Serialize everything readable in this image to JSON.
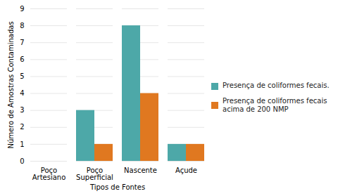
{
  "chart_data": {
    "type": "bar",
    "categories": [
      "Poço\nArtesiano",
      "Poço\nSuperficial",
      "Nascente",
      "Açude"
    ],
    "series": [
      {
        "name": "Presença de coliformes fecais.",
        "color": "#4da8a8",
        "values": [
          0,
          3,
          8,
          1
        ]
      },
      {
        "name": "Presença de coliformes fecais\nacima de 200 NMP",
        "color": "#e07820",
        "values": [
          0,
          1,
          4,
          1
        ]
      }
    ],
    "xlabel": "Tipos de Fontes",
    "ylabel": "Número de Amostras Contaminadas",
    "ylim": [
      0,
      9
    ],
    "yticks": [
      0,
      1,
      2,
      3,
      4,
      5,
      6,
      7,
      8,
      9
    ],
    "grid": true,
    "legend": "right"
  }
}
